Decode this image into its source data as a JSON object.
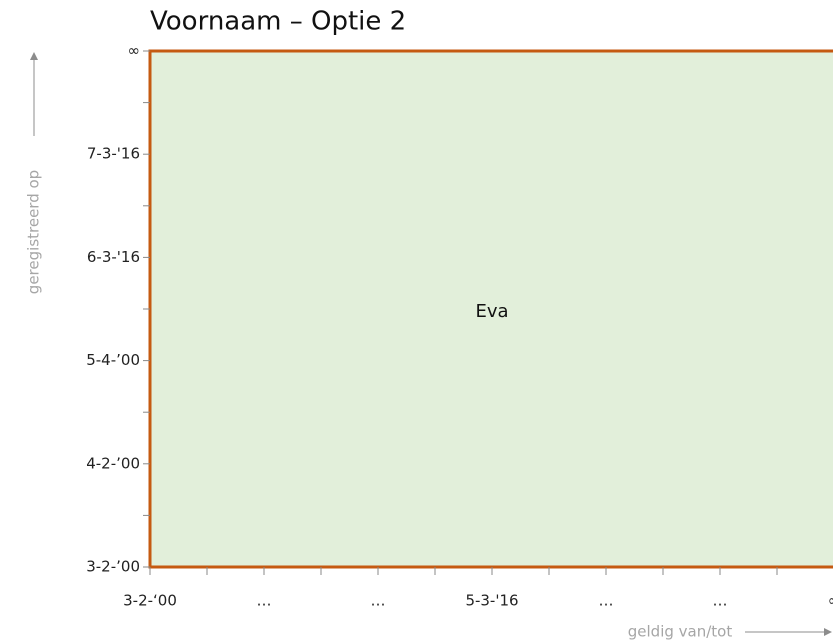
{
  "header": {
    "title": "Voornaam – Optie 2"
  },
  "y_axis": {
    "label": "geregistreerd op",
    "ticks": [
      "∞",
      "7-3-'16",
      "6-3-'16",
      "5-4-’00",
      "4-2-’00",
      "3-2-’00"
    ]
  },
  "x_axis": {
    "label": "geldig van/tot",
    "ticks": [
      "3-2-‘00",
      "…",
      "…",
      "5-3-'16",
      "…",
      "…",
      "∞"
    ]
  },
  "cell": {
    "label": "Eva"
  }
}
